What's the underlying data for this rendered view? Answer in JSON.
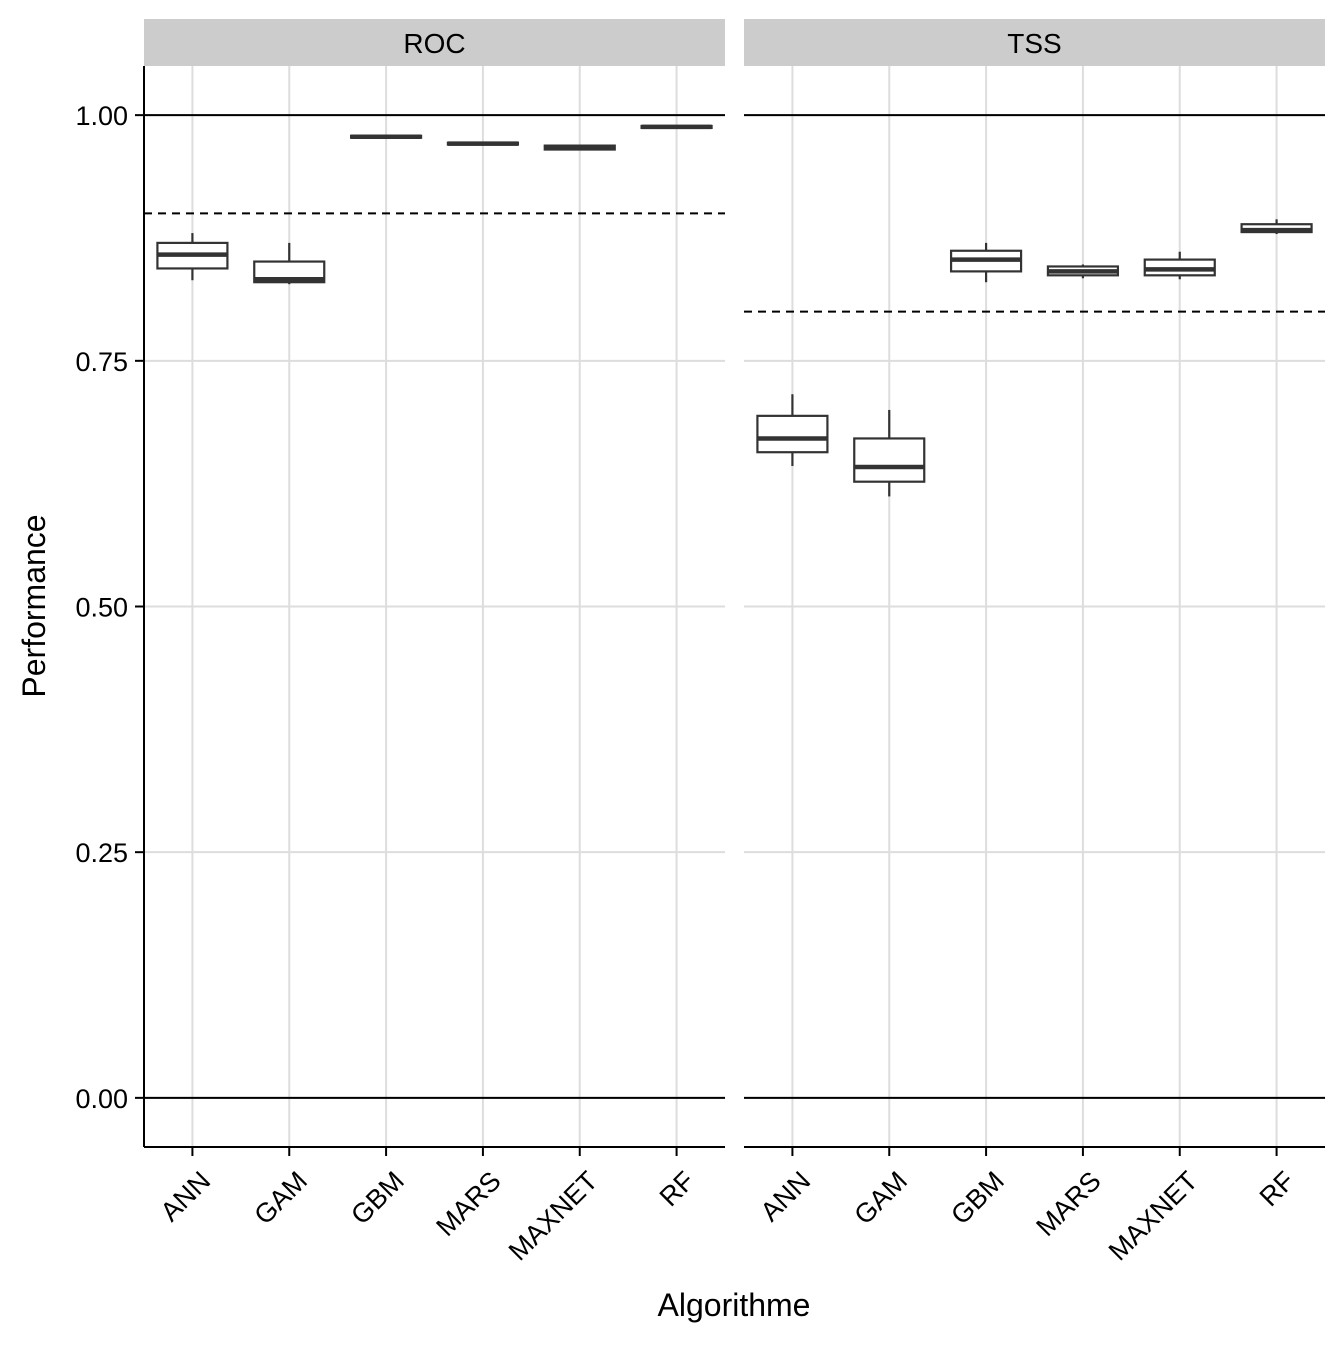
{
  "chart_data": {
    "type": "boxplot",
    "xlabel": "Algorithme",
    "ylabel": "Performance",
    "categories": [
      "ANN",
      "GAM",
      "GBM",
      "MARS",
      "MAXNET",
      "RF"
    ],
    "ylim": [
      -0.05,
      1.05
    ],
    "yticks": [
      0.0,
      0.25,
      0.5,
      0.75,
      1.0
    ],
    "ytick_labels": [
      "0.00",
      "0.25",
      "0.50",
      "0.75",
      "1.00"
    ],
    "grid": true,
    "colors": {
      "box_stroke": "#333333",
      "box_fill": "#ffffff",
      "grid": "#dddddd",
      "strip": "#cccccc",
      "axis": "#000000"
    },
    "panels": [
      {
        "strip_label": "ROC",
        "reference_lines": {
          "solid": [
            0.0,
            1.0
          ],
          "dashed": 0.9
        },
        "boxes": [
          {
            "category": "ANN",
            "whisker_low": 0.832,
            "q1": 0.844,
            "median": 0.858,
            "q3": 0.87,
            "whisker_high": 0.88
          },
          {
            "category": "GAM",
            "whisker_low": 0.828,
            "q1": 0.83,
            "median": 0.833,
            "q3": 0.851,
            "whisker_high": 0.87
          },
          {
            "category": "GBM",
            "whisker_low": 0.976,
            "q1": 0.977,
            "median": 0.978,
            "q3": 0.979,
            "whisker_high": 0.98
          },
          {
            "category": "MARS",
            "whisker_low": 0.969,
            "q1": 0.97,
            "median": 0.971,
            "q3": 0.972,
            "whisker_high": 0.973
          },
          {
            "category": "MAXNET",
            "whisker_low": 0.964,
            "q1": 0.965,
            "median": 0.967,
            "q3": 0.969,
            "whisker_high": 0.97
          },
          {
            "category": "RF",
            "whisker_low": 0.986,
            "q1": 0.987,
            "median": 0.988,
            "q3": 0.989,
            "whisker_high": 0.99
          }
        ]
      },
      {
        "strip_label": "TSS",
        "reference_lines": {
          "solid": [
            0.0,
            1.0
          ],
          "dashed": 0.8
        },
        "boxes": [
          {
            "category": "ANN",
            "whisker_low": 0.643,
            "q1": 0.657,
            "median": 0.671,
            "q3": 0.694,
            "whisker_high": 0.716
          },
          {
            "category": "GAM",
            "whisker_low": 0.612,
            "q1": 0.627,
            "median": 0.642,
            "q3": 0.671,
            "whisker_high": 0.7
          },
          {
            "category": "GBM",
            "whisker_low": 0.83,
            "q1": 0.841,
            "median": 0.853,
            "q3": 0.862,
            "whisker_high": 0.87
          },
          {
            "category": "MARS",
            "whisker_low": 0.834,
            "q1": 0.837,
            "median": 0.841,
            "q3": 0.846,
            "whisker_high": 0.848
          },
          {
            "category": "MAXNET",
            "whisker_low": 0.833,
            "q1": 0.837,
            "median": 0.843,
            "q3": 0.853,
            "whisker_high": 0.861
          },
          {
            "category": "RF",
            "whisker_low": 0.879,
            "q1": 0.881,
            "median": 0.883,
            "q3": 0.889,
            "whisker_high": 0.894
          }
        ]
      }
    ]
  }
}
